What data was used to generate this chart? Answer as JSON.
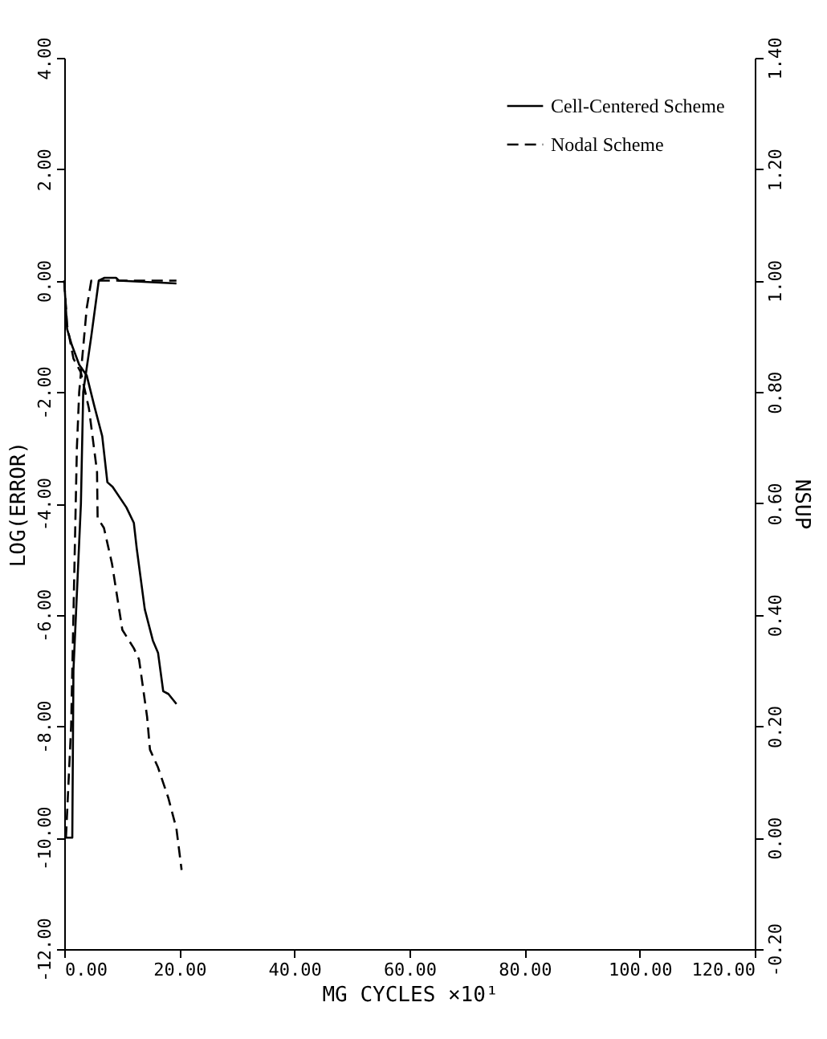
{
  "chart_data": {
    "type": "line",
    "xlabel": "MG CYCLES ×10¹",
    "ylabel": "LOG(ERROR)",
    "y2label": "NSUP",
    "xlim": [
      0,
      120
    ],
    "xticks": [
      {
        "value": 0,
        "label": "0.00"
      },
      {
        "value": 20,
        "label": "20.00"
      },
      {
        "value": 40,
        "label": "40.00"
      },
      {
        "value": 60,
        "label": "60.00"
      },
      {
        "value": 80,
        "label": "80.00"
      },
      {
        "value": 100,
        "label": "100.00"
      },
      {
        "value": 120,
        "label": "120.00"
      }
    ],
    "ylim": [
      -12,
      4
    ],
    "yticks": [
      {
        "value": -12,
        "label": "-12.00"
      },
      {
        "value": -10,
        "label": "-10.00"
      },
      {
        "value": -8,
        "label": "-8.00"
      },
      {
        "value": -6,
        "label": "-6.00"
      },
      {
        "value": -4,
        "label": "-4.00"
      },
      {
        "value": -2,
        "label": "-2.00"
      },
      {
        "value": 0,
        "label": "0.00"
      },
      {
        "value": 2,
        "label": "2.00"
      },
      {
        "value": 4,
        "label": "4.00"
      }
    ],
    "y2lim": [
      -0.2,
      1.4
    ],
    "y2ticks": [
      {
        "value": -0.2,
        "label": "-0.20"
      },
      {
        "value": 0,
        "label": "0.00"
      },
      {
        "value": 0.2,
        "label": "0.20"
      },
      {
        "value": 0.4,
        "label": "0.40"
      },
      {
        "value": 0.6,
        "label": "0.60"
      },
      {
        "value": 0.8,
        "label": "0.80"
      },
      {
        "value": 1,
        "label": "1.00"
      },
      {
        "value": 1.2,
        "label": "1.20"
      },
      {
        "value": 1.4,
        "label": "1.40"
      }
    ],
    "grid": false,
    "legend": "top right",
    "series": [
      {
        "name": "Cell-Centered Scheme",
        "color": "#000000",
        "line_style": "solid",
        "x": [
          0,
          0.5,
          1.3,
          2.6,
          3.9,
          5.2,
          6.6,
          7.5,
          8.4,
          10.8,
          12.1,
          12.6,
          14.0,
          15.4,
          16.3,
          17.2,
          18.1,
          19.5
        ],
        "values": [
          0,
          -0.87,
          -1.15,
          -1.51,
          -1.7,
          -2.24,
          -2.79,
          -3.62,
          -3.7,
          -4.07,
          -4.35,
          -4.81,
          -5.9,
          -6.46,
          -6.68,
          -7.37,
          -7.42,
          -7.6
        ]
      },
      {
        "name": "Nodal Scheme",
        "color": "#000000",
        "line_style": "dashed",
        "x": [
          0,
          0.5,
          1.6,
          2.9,
          4.3,
          5.7,
          5.8,
          6.9,
          8.3,
          10.1,
          12.1,
          13.0,
          14.4,
          14.9,
          16.3,
          18.1,
          19.5,
          20.4
        ],
        "values": [
          0,
          -0.8,
          -1.4,
          -1.65,
          -2.3,
          -3.43,
          -4.26,
          -4.44,
          -5.08,
          -6.27,
          -6.6,
          -6.8,
          -7.83,
          -8.42,
          -8.74,
          -9.29,
          -9.84,
          -10.58
        ]
      },
      {
        "color": "#000000",
        "line_style": "solid",
        "axis": "y2",
        "x": [
          0,
          1.4,
          1.6,
          2.9,
          3.3,
          4.7,
          6.0,
          7.0,
          9.0,
          9.5,
          19.5
        ],
        "values": [
          0,
          0,
          0.3,
          0.6,
          0.8,
          0.9,
          1.0,
          1.005,
          1.005,
          1.0,
          0.995
        ]
      },
      {
        "color": "#000000",
        "line_style": "dashed",
        "axis": "y2",
        "x": [
          0.3,
          1.2,
          1.8,
          2.2,
          2.6,
          3.9,
          4.7,
          19.5
        ],
        "values": [
          0,
          0.2,
          0.5,
          0.7,
          0.8,
          0.95,
          1.0,
          1.0
        ]
      }
    ]
  }
}
